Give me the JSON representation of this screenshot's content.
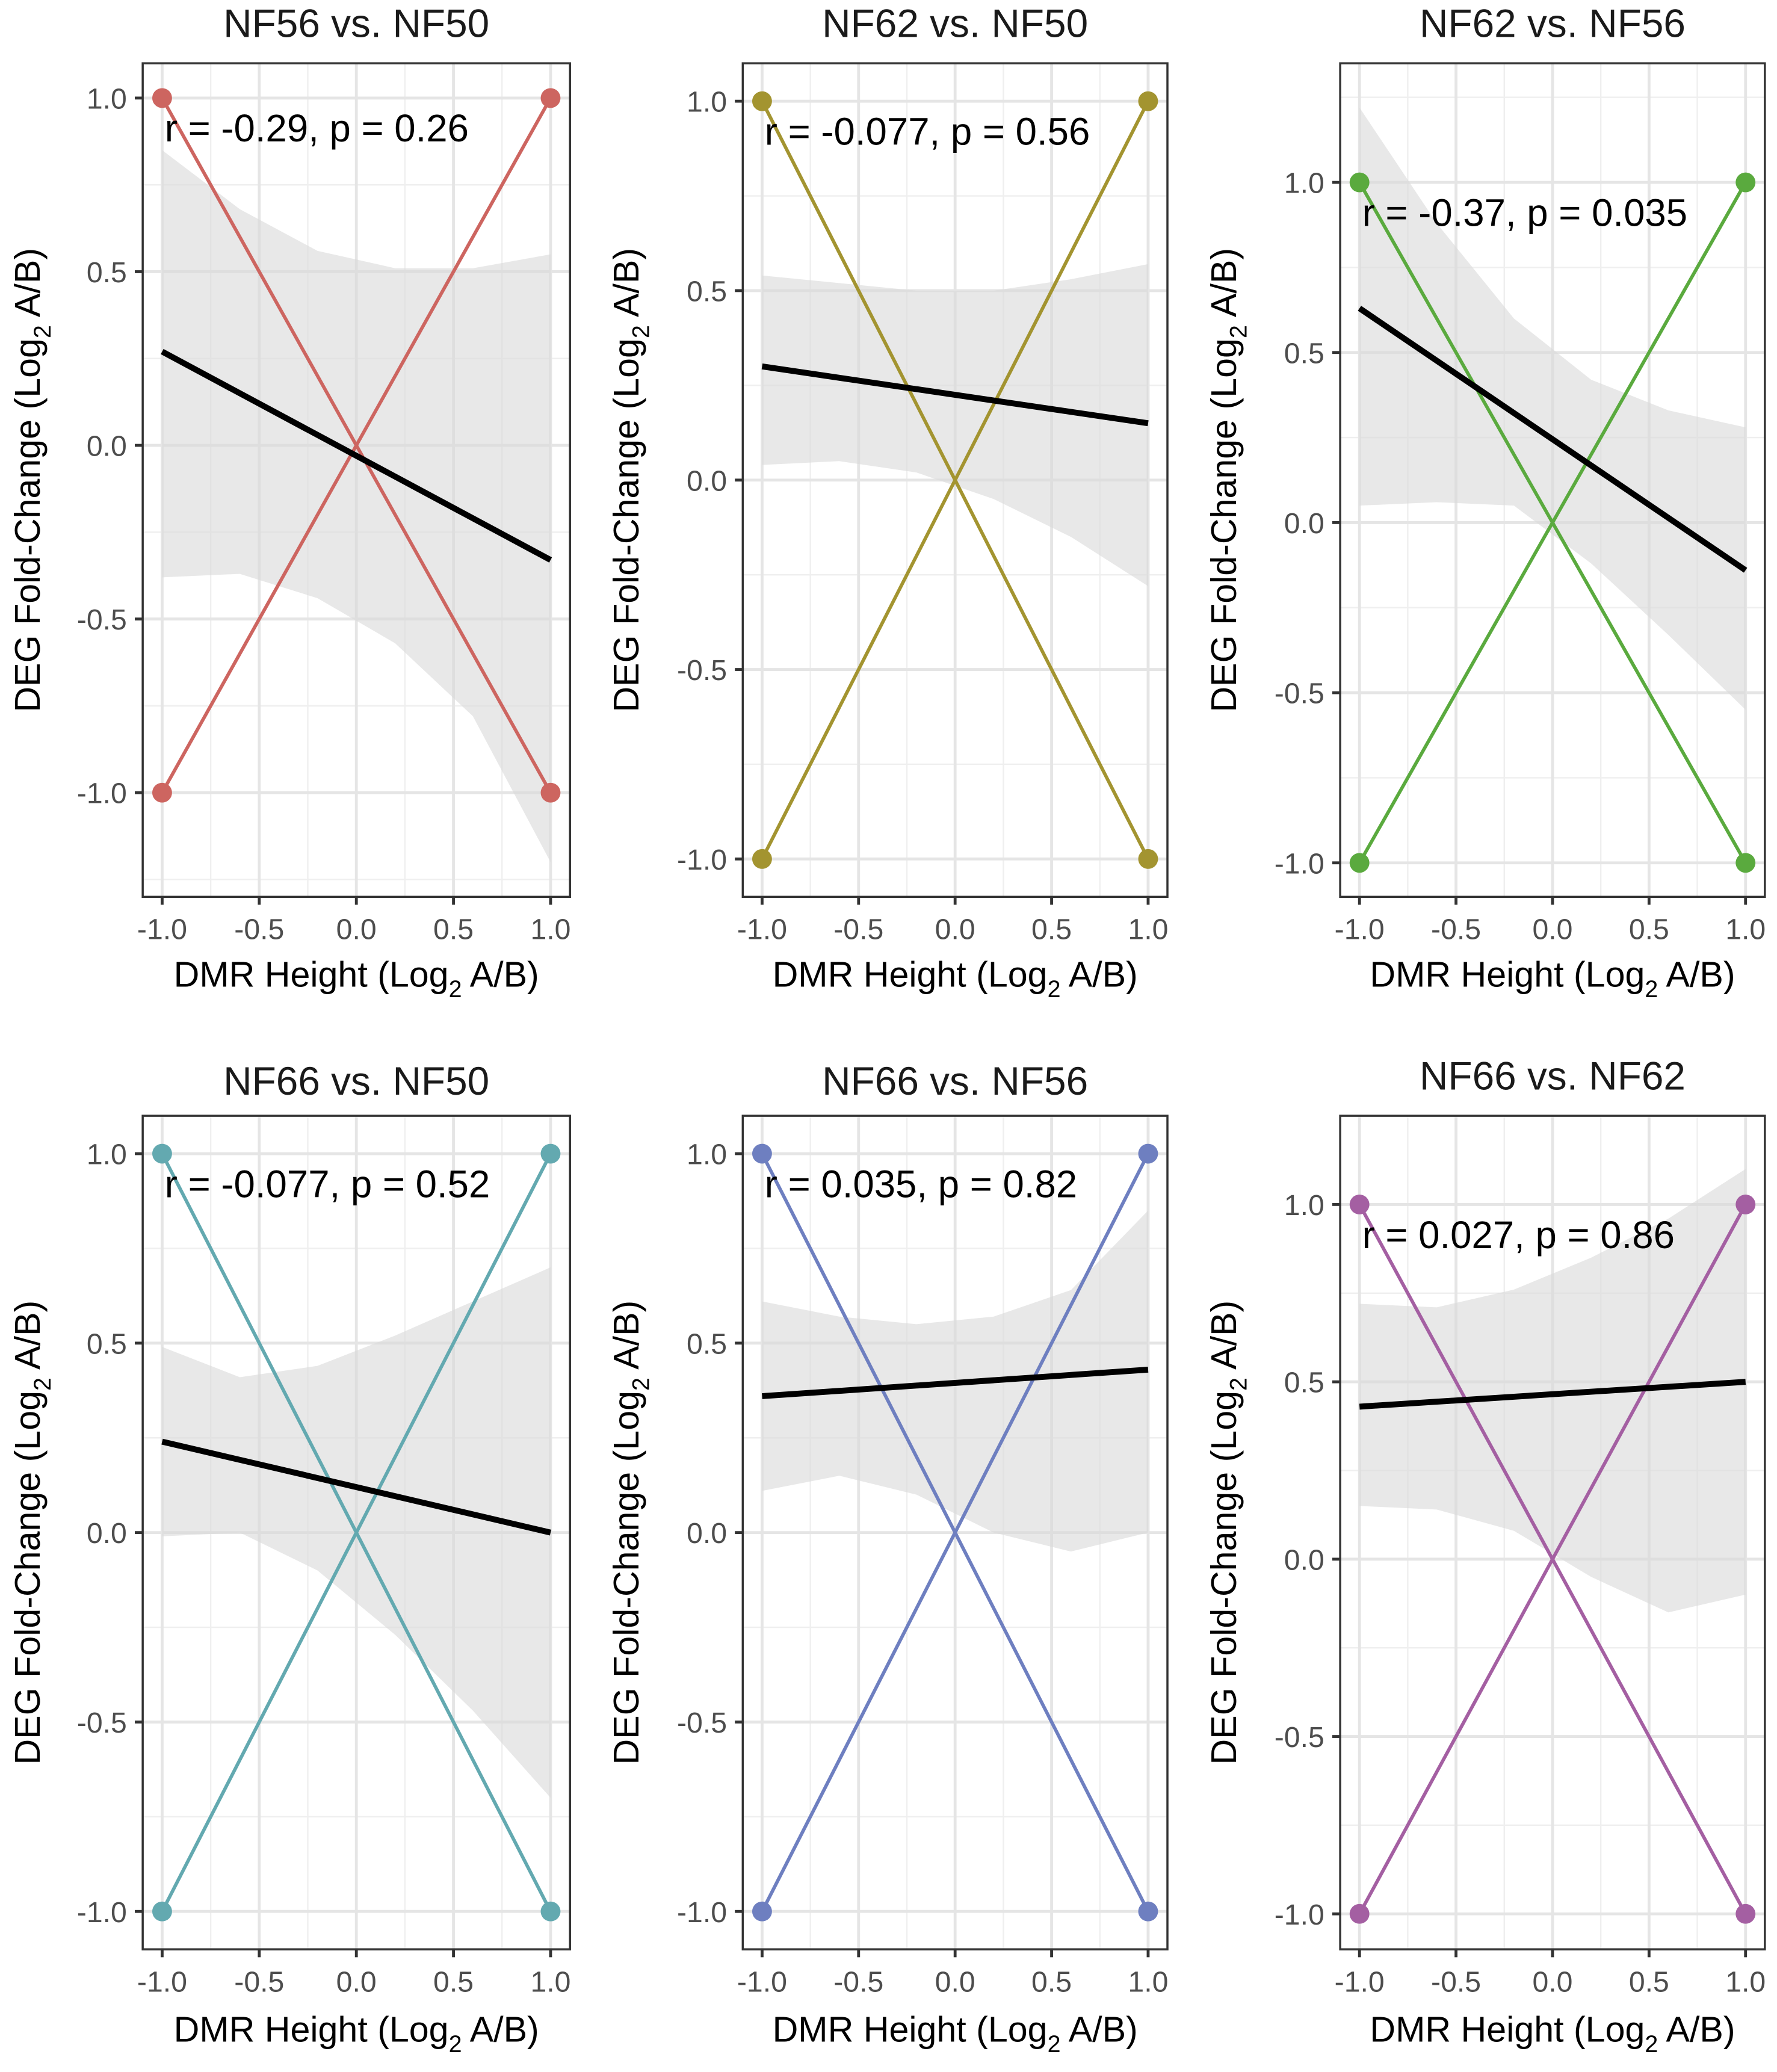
{
  "chart_data": [
    {
      "type": "scatter",
      "title": "NF56 vs. NF50",
      "xlabel": "DMR Height (Log2 A/B)",
      "ylabel": "DEG Fold-Change (Log2 A/B)",
      "color": "#cd6560",
      "xlim": [
        -1.1,
        1.1
      ],
      "ylim": [
        -1.3,
        1.1
      ],
      "xticks": [
        "-1.0",
        "-0.5",
        "0.0",
        "0.5",
        "1.0"
      ],
      "yticks": [
        "-1.0",
        "-0.5",
        "0.0",
        "0.5",
        "1.0"
      ],
      "ytick_values": [
        -1.0,
        -0.5,
        0.0,
        0.5,
        1.0
      ],
      "points": [
        [
          -1,
          1
        ],
        [
          1,
          1
        ],
        [
          -1,
          -1
        ],
        [
          1,
          -1
        ]
      ],
      "segments": [
        [
          [
            -1,
            1
          ],
          [
            1,
            -1
          ]
        ],
        [
          [
            -1,
            -1
          ],
          [
            1,
            1
          ]
        ]
      ],
      "fit_line": [
        [
          -1,
          0.27
        ],
        [
          1,
          -0.33
        ]
      ],
      "ci_upper": [
        [
          -1,
          0.85
        ],
        [
          -0.6,
          0.68
        ],
        [
          -0.2,
          0.56
        ],
        [
          0.2,
          0.51
        ],
        [
          0.6,
          0.51
        ],
        [
          1,
          0.55
        ]
      ],
      "ci_lower": [
        [
          -1,
          -0.38
        ],
        [
          -0.6,
          -0.37
        ],
        [
          -0.2,
          -0.44
        ],
        [
          0.2,
          -0.57
        ],
        [
          0.6,
          -0.78
        ],
        [
          1,
          -1.2
        ]
      ],
      "annotation": "r = -0.29, p = 0.26",
      "r": -0.29,
      "p": 0.26
    },
    {
      "type": "scatter",
      "title": "NF62 vs. NF50",
      "xlabel": "DMR Height (Log2 A/B)",
      "ylabel": "DEG Fold-Change (Log2 A/B)",
      "color": "#a39430",
      "xlim": [
        -1.1,
        1.1
      ],
      "ylim": [
        -1.1,
        1.1
      ],
      "xticks": [
        "-1.0",
        "-0.5",
        "0.0",
        "0.5",
        "1.0"
      ],
      "yticks": [
        "-1.0",
        "-0.5",
        "0.0",
        "0.5",
        "1.0"
      ],
      "ytick_values": [
        -1.0,
        -0.5,
        0.0,
        0.5,
        1.0
      ],
      "points": [
        [
          -1,
          1
        ],
        [
          1,
          1
        ],
        [
          -1,
          -1
        ],
        [
          1,
          -1
        ]
      ],
      "segments": [
        [
          [
            -1,
            1
          ],
          [
            1,
            -1
          ]
        ],
        [
          [
            -1,
            -1
          ],
          [
            1,
            1
          ]
        ]
      ],
      "fit_line": [
        [
          -1,
          0.3
        ],
        [
          1,
          0.15
        ]
      ],
      "ci_upper": [
        [
          -1,
          0.54
        ],
        [
          -0.6,
          0.52
        ],
        [
          -0.2,
          0.5
        ],
        [
          0.2,
          0.5
        ],
        [
          0.6,
          0.53
        ],
        [
          1,
          0.57
        ]
      ],
      "ci_lower": [
        [
          -1,
          0.04
        ],
        [
          -0.6,
          0.05
        ],
        [
          -0.2,
          0.02
        ],
        [
          0.2,
          -0.05
        ],
        [
          0.6,
          -0.15
        ],
        [
          1,
          -0.28
        ]
      ],
      "annotation": "r = -0.077, p = 0.56",
      "r": -0.077,
      "p": 0.56
    },
    {
      "type": "scatter",
      "title": "NF62 vs. NF56",
      "xlabel": "DMR Height (Log2 A/B)",
      "ylabel": "DEG Fold-Change (Log2 A/B)",
      "color": "#5aaa3e",
      "xlim": [
        -1.1,
        1.1
      ],
      "ylim": [
        -1.1,
        1.35
      ],
      "xticks": [
        "-1.0",
        "-0.5",
        "0.0",
        "0.5",
        "1.0"
      ],
      "yticks": [
        "-1.0",
        "-0.5",
        "0.0",
        "0.5",
        "1.0"
      ],
      "ytick_values": [
        -1.0,
        -0.5,
        0.0,
        0.5,
        1.0
      ],
      "points": [
        [
          -1,
          1
        ],
        [
          1,
          1
        ],
        [
          -1,
          -1
        ],
        [
          1,
          -1
        ]
      ],
      "segments": [
        [
          [
            -1,
            1
          ],
          [
            1,
            -1
          ]
        ],
        [
          [
            -1,
            -1
          ],
          [
            1,
            1
          ]
        ]
      ],
      "fit_line": [
        [
          -1,
          0.63
        ],
        [
          1,
          -0.14
        ]
      ],
      "ci_upper": [
        [
          -1,
          1.22
        ],
        [
          -0.6,
          0.88
        ],
        [
          -0.2,
          0.6
        ],
        [
          0.2,
          0.42
        ],
        [
          0.6,
          0.33
        ],
        [
          1,
          0.28
        ]
      ],
      "ci_lower": [
        [
          -1,
          0.05
        ],
        [
          -0.6,
          0.06
        ],
        [
          -0.2,
          0.05
        ],
        [
          0.2,
          -0.12
        ],
        [
          0.6,
          -0.33
        ],
        [
          1,
          -0.55
        ]
      ],
      "annotation": "r = -0.37, p = 0.035",
      "r": -0.37,
      "p": 0.035
    },
    {
      "type": "scatter",
      "title": "NF66 vs. NF50",
      "xlabel": "DMR Height (Log2 A/B)",
      "ylabel": "DEG Fold-Change (Log2 A/B)",
      "color": "#63a9b0",
      "xlim": [
        -1.1,
        1.1
      ],
      "ylim": [
        -1.1,
        1.1
      ],
      "xticks": [
        "-1.0",
        "-0.5",
        "0.0",
        "0.5",
        "1.0"
      ],
      "yticks": [
        "-1.0",
        "-0.5",
        "0.0",
        "0.5",
        "1.0"
      ],
      "ytick_values": [
        -1.0,
        -0.5,
        0.0,
        0.5,
        1.0
      ],
      "points": [
        [
          -1,
          1
        ],
        [
          1,
          1
        ],
        [
          -1,
          -1
        ],
        [
          1,
          -1
        ]
      ],
      "segments": [
        [
          [
            -1,
            1
          ],
          [
            1,
            -1
          ]
        ],
        [
          [
            -1,
            -1
          ],
          [
            1,
            1
          ]
        ]
      ],
      "fit_line": [
        [
          -1,
          0.24
        ],
        [
          1,
          0.0
        ]
      ],
      "ci_upper": [
        [
          -1,
          0.49
        ],
        [
          -0.6,
          0.41
        ],
        [
          -0.2,
          0.44
        ],
        [
          0.2,
          0.52
        ],
        [
          0.6,
          0.61
        ],
        [
          1,
          0.7
        ]
      ],
      "ci_lower": [
        [
          -1,
          -0.01
        ],
        [
          -0.6,
          0.0
        ],
        [
          -0.2,
          -0.1
        ],
        [
          0.2,
          -0.27
        ],
        [
          0.6,
          -0.47
        ],
        [
          1,
          -0.7
        ]
      ],
      "annotation": "r = -0.077, p = 0.52",
      "r": -0.077,
      "p": 0.52
    },
    {
      "type": "scatter",
      "title": "NF66 vs. NF56",
      "xlabel": "DMR Height (Log2 A/B)",
      "ylabel": "DEG Fold-Change (Log2 A/B)",
      "color": "#6e7fc0",
      "xlim": [
        -1.1,
        1.1
      ],
      "ylim": [
        -1.1,
        1.1
      ],
      "xticks": [
        "-1.0",
        "-0.5",
        "0.0",
        "0.5",
        "1.0"
      ],
      "yticks": [
        "-1.0",
        "-0.5",
        "0.0",
        "0.5",
        "1.0"
      ],
      "ytick_values": [
        -1.0,
        -0.5,
        0.0,
        0.5,
        1.0
      ],
      "points": [
        [
          -1,
          1
        ],
        [
          1,
          1
        ],
        [
          -1,
          -1
        ],
        [
          1,
          -1
        ]
      ],
      "segments": [
        [
          [
            -1,
            1
          ],
          [
            1,
            -1
          ]
        ],
        [
          [
            -1,
            -1
          ],
          [
            1,
            1
          ]
        ]
      ],
      "fit_line": [
        [
          -1,
          0.36
        ],
        [
          1,
          0.43
        ]
      ],
      "ci_upper": [
        [
          -1,
          0.61
        ],
        [
          -0.6,
          0.57
        ],
        [
          -0.2,
          0.55
        ],
        [
          0.2,
          0.57
        ],
        [
          0.6,
          0.64
        ],
        [
          1,
          0.85
        ]
      ],
      "ci_lower": [
        [
          -1,
          0.11
        ],
        [
          -0.6,
          0.15
        ],
        [
          -0.2,
          0.1
        ],
        [
          0.2,
          0.0
        ],
        [
          0.6,
          -0.05
        ],
        [
          1,
          0.0
        ]
      ],
      "annotation": "r = 0.035, p = 0.82",
      "r": 0.035,
      "p": 0.82
    },
    {
      "type": "scatter",
      "title": "NF66 vs. NF62",
      "xlabel": "DMR Height (Log2 A/B)",
      "ylabel": "DEG Fold-Change (Log2 A/B)",
      "color": "#a45fa2",
      "xlim": [
        -1.1,
        1.1
      ],
      "ylim": [
        -1.1,
        1.25
      ],
      "xticks": [
        "-1.0",
        "-0.5",
        "0.0",
        "0.5",
        "1.0"
      ],
      "yticks": [
        "-1.0",
        "-0.5",
        "0.0",
        "0.5",
        "1.0"
      ],
      "ytick_values": [
        -1.0,
        -0.5,
        0.0,
        0.5,
        1.0
      ],
      "points": [
        [
          -1,
          1
        ],
        [
          1,
          1
        ],
        [
          -1,
          -1
        ],
        [
          1,
          -1
        ]
      ],
      "segments": [
        [
          [
            -1,
            1
          ],
          [
            1,
            -1
          ]
        ],
        [
          [
            -1,
            -1
          ],
          [
            1,
            1
          ]
        ]
      ],
      "fit_line": [
        [
          -1,
          0.43
        ],
        [
          1,
          0.5
        ]
      ],
      "ci_upper": [
        [
          -1,
          0.72
        ],
        [
          -0.6,
          0.71
        ],
        [
          -0.2,
          0.76
        ],
        [
          0.2,
          0.85
        ],
        [
          0.6,
          0.96
        ],
        [
          1,
          1.1
        ]
      ],
      "ci_lower": [
        [
          -1,
          0.15
        ],
        [
          -0.6,
          0.14
        ],
        [
          -0.2,
          0.08
        ],
        [
          0.2,
          -0.05
        ],
        [
          0.6,
          -0.15
        ],
        [
          1,
          -0.1
        ]
      ],
      "annotation": "r = 0.027, p = 0.86",
      "r": 0.027,
      "p": 0.86
    }
  ]
}
